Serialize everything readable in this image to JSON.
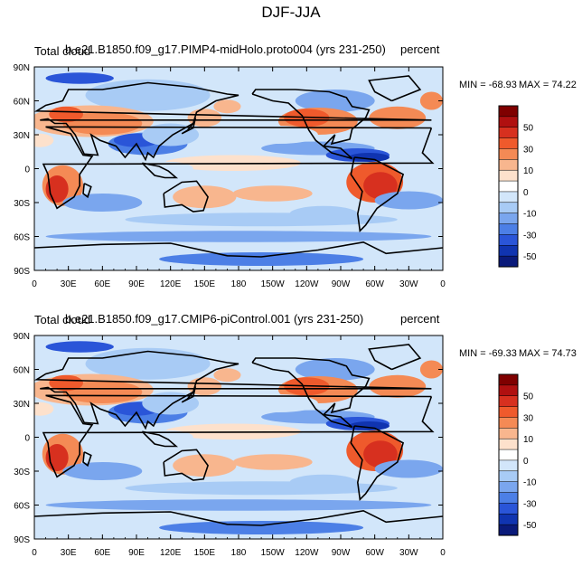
{
  "title": "DJF-JJA",
  "panels": [
    {
      "variable_label": "Total cloud",
      "case_label": "b.e21.B1850.f09_g17.PIMP4-midHolo.proto004 (yrs 231-250)",
      "units_label": "percent",
      "min_label": "MIN = -68.93",
      "max_label": "MAX =  74.22"
    },
    {
      "variable_label": "Total cloud",
      "case_label": "b.e21.B1850.f09_g17.CMIP6-piControl.001 (yrs 231-250)",
      "units_label": "percent",
      "min_label": "MIN = -69.33",
      "max_label": "MAX =  74.73"
    }
  ],
  "chart_data": [
    {
      "type": "heatmap",
      "title": "b.e21.B1850.f09_g17.PIMP4-midHolo.proto004 (yrs 231-250)",
      "xlabel": "",
      "ylabel": "",
      "x_ticks": [
        "0",
        "30E",
        "60E",
        "90E",
        "120E",
        "150E",
        "180",
        "150W",
        "120W",
        "90W",
        "60W",
        "30W",
        "0"
      ],
      "y_ticks": [
        "90N",
        "60N",
        "30N",
        "0",
        "30S",
        "60S",
        "90S"
      ],
      "xlim": [
        0,
        360
      ],
      "ylim": [
        -90,
        90
      ],
      "colorbar_ticks": [
        "50",
        "30",
        "10",
        "0",
        "-10",
        "-30",
        "-50"
      ],
      "value_range": [
        -68.93,
        74.22
      ]
    },
    {
      "type": "heatmap",
      "title": "b.e21.B1850.f09_g17.CMIP6-piControl.001 (yrs 231-250)",
      "xlabel": "",
      "ylabel": "",
      "x_ticks": [
        "0",
        "30E",
        "60E",
        "90E",
        "120E",
        "150E",
        "180",
        "150W",
        "120W",
        "90W",
        "60W",
        "30W",
        "0"
      ],
      "y_ticks": [
        "90N",
        "60N",
        "30N",
        "0",
        "30S",
        "60S",
        "90S"
      ],
      "xlim": [
        0,
        360
      ],
      "ylim": [
        -90,
        90
      ],
      "colorbar_ticks": [
        "50",
        "30",
        "10",
        "0",
        "-10",
        "-30",
        "-50"
      ],
      "value_range": [
        -69.33,
        74.73
      ]
    }
  ],
  "colors": {
    "levels": [
      "#7f0000",
      "#b01010",
      "#d7301f",
      "#ef5a2c",
      "#f48a55",
      "#f8b68e",
      "#fde1cc",
      "#ffffff",
      "#d2e6fa",
      "#a8cbf5",
      "#7aa6ee",
      "#4c7fe6",
      "#2a55d8",
      "#1034b0",
      "#0a1a7a"
    ],
    "coast": "#000000"
  }
}
